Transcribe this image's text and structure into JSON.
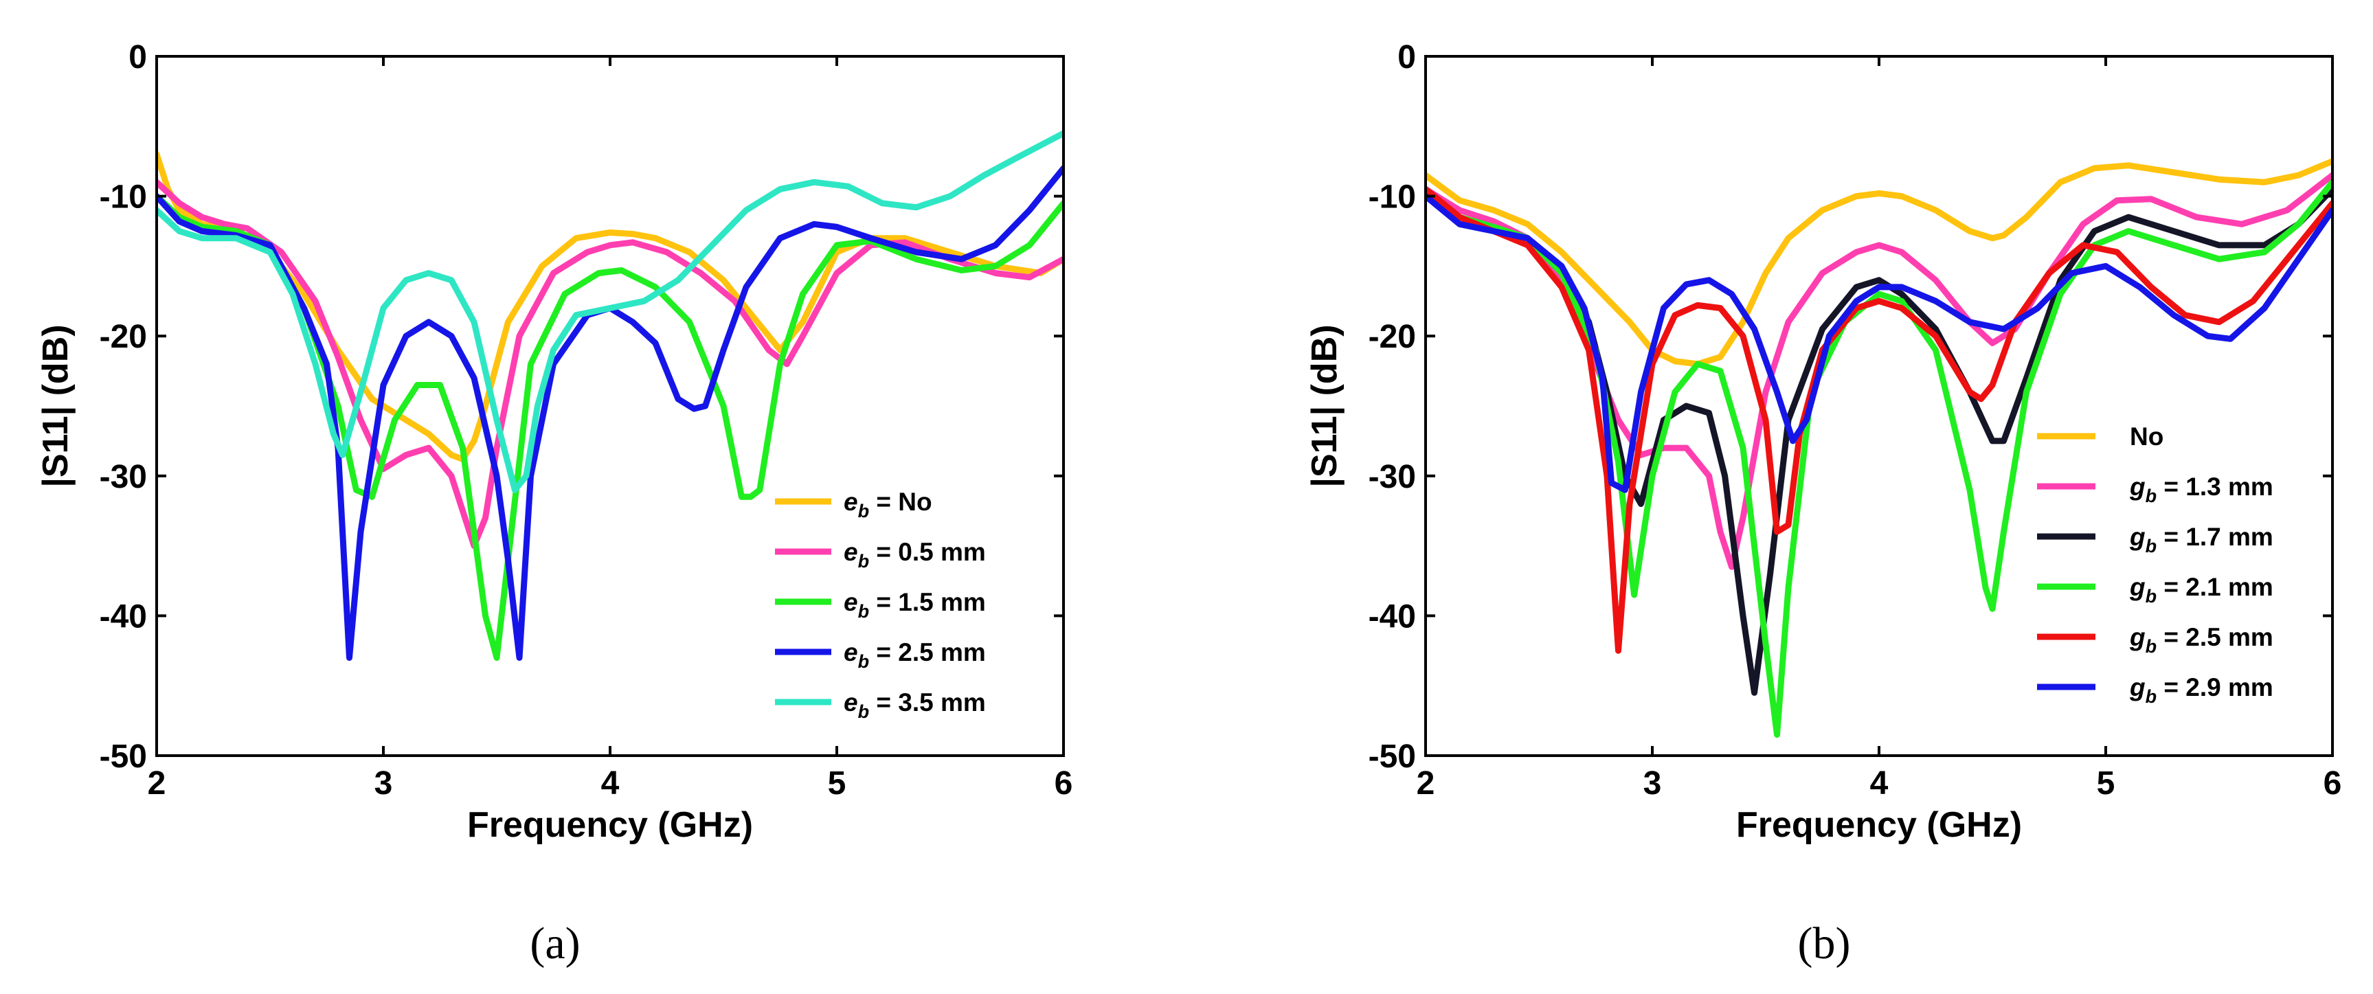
{
  "chart_data": [
    {
      "type": "line",
      "panel_label": "(a)",
      "xlabel": "Frequency (GHz)",
      "ylabel": "|S11| (dB)",
      "xlim": [
        2,
        6
      ],
      "ylim": [
        -50,
        0
      ],
      "xticks": [
        2,
        3,
        4,
        5,
        6
      ],
      "yticks": [
        0,
        -10,
        -20,
        -30,
        -40,
        -50
      ],
      "legend_position": "bottom-right",
      "series": [
        {
          "name": "No",
          "legend_prefix": "e",
          "legend_sub": "b",
          "legend_suffix": " = No",
          "color": "#ffc20e",
          "x": [
            2.0,
            2.05,
            2.1,
            2.2,
            2.35,
            2.5,
            2.65,
            2.8,
            2.95,
            3.1,
            3.2,
            3.3,
            3.35,
            3.4,
            3.45,
            3.55,
            3.7,
            3.85,
            4.0,
            4.1,
            4.2,
            4.35,
            4.5,
            4.65,
            4.75,
            4.85,
            5.0,
            5.15,
            5.3,
            5.5,
            5.7,
            5.9,
            6.0
          ],
          "y": [
            -7,
            -9.5,
            -11,
            -12,
            -12.5,
            -14,
            -17,
            -21,
            -24.5,
            -26,
            -27,
            -28.5,
            -28.8,
            -27.5,
            -25,
            -19,
            -15,
            -13,
            -12.6,
            -12.7,
            -13,
            -14,
            -16,
            -19,
            -21,
            -19,
            -14,
            -13,
            -13,
            -14,
            -15,
            -15.5,
            -14.5
          ]
        },
        {
          "name": "0.5 mm",
          "legend_prefix": "e",
          "legend_sub": "b",
          "legend_suffix": " = 0.5 mm",
          "color": "#ff3fb0",
          "x": [
            2.0,
            2.1,
            2.2,
            2.3,
            2.4,
            2.55,
            2.7,
            2.8,
            2.9,
            3.0,
            3.1,
            3.2,
            3.3,
            3.4,
            3.45,
            3.5,
            3.6,
            3.75,
            3.9,
            4.0,
            4.1,
            4.25,
            4.4,
            4.55,
            4.7,
            4.78,
            4.85,
            5.0,
            5.15,
            5.3,
            5.5,
            5.7,
            5.85,
            6.0
          ],
          "y": [
            -9,
            -10.5,
            -11.5,
            -12,
            -12.3,
            -14,
            -17.5,
            -21.5,
            -26,
            -29.5,
            -28.5,
            -28,
            -30,
            -35,
            -33,
            -28,
            -20,
            -15.5,
            -14,
            -13.5,
            -13.3,
            -14,
            -15.5,
            -17.5,
            -21,
            -22,
            -20,
            -15.5,
            -13.5,
            -13.3,
            -14.5,
            -15.5,
            -15.8,
            -14.5
          ]
        },
        {
          "name": "1.5 mm",
          "legend_prefix": "e",
          "legend_sub": "b",
          "legend_suffix": " = 1.5 mm",
          "color": "#20ee20",
          "x": [
            2.0,
            2.1,
            2.2,
            2.35,
            2.5,
            2.65,
            2.8,
            2.88,
            2.95,
            3.05,
            3.15,
            3.25,
            3.35,
            3.45,
            3.5,
            3.55,
            3.65,
            3.8,
            3.95,
            4.05,
            4.2,
            4.35,
            4.5,
            4.58,
            4.62,
            4.66,
            4.75,
            4.85,
            5.0,
            5.15,
            5.35,
            5.55,
            5.7,
            5.85,
            6.0
          ],
          "y": [
            -10,
            -11.5,
            -12.2,
            -12.5,
            -13.5,
            -18,
            -25,
            -31,
            -31.5,
            -26,
            -23.5,
            -23.5,
            -28,
            -40,
            -43,
            -36,
            -22,
            -17,
            -15.5,
            -15.3,
            -16.5,
            -19,
            -25,
            -31.5,
            -31.5,
            -31,
            -22,
            -17,
            -13.5,
            -13.2,
            -14.5,
            -15.3,
            -15,
            -13.5,
            -10.5
          ]
        },
        {
          "name": "2.5 mm",
          "legend_prefix": "e",
          "legend_sub": "b",
          "legend_suffix": " = 2.5 mm",
          "color": "#1515e8",
          "x": [
            2.0,
            2.1,
            2.2,
            2.35,
            2.5,
            2.65,
            2.75,
            2.8,
            2.85,
            2.9,
            3.0,
            3.1,
            3.2,
            3.3,
            3.4,
            3.5,
            3.55,
            3.6,
            3.65,
            3.75,
            3.9,
            4.0,
            4.1,
            4.2,
            4.3,
            4.37,
            4.42,
            4.5,
            4.6,
            4.75,
            4.9,
            5.0,
            5.15,
            5.35,
            5.55,
            5.7,
            5.85,
            6.0
          ],
          "y": [
            -10,
            -11.8,
            -12.5,
            -12.8,
            -13.5,
            -18,
            -22,
            -28,
            -43,
            -34,
            -23.5,
            -20,
            -19,
            -20,
            -23,
            -30,
            -36,
            -43,
            -30,
            -22,
            -18.5,
            -18,
            -19,
            -20.5,
            -24.5,
            -25.2,
            -25,
            -21,
            -16.5,
            -13,
            -12,
            -12.2,
            -13,
            -14,
            -14.5,
            -13.5,
            -11,
            -8
          ]
        },
        {
          "name": "3.5 mm",
          "legend_prefix": "e",
          "legend_sub": "b",
          "legend_suffix": " = 3.5 mm",
          "color": "#2ee6c4",
          "x": [
            2.0,
            2.1,
            2.2,
            2.35,
            2.5,
            2.6,
            2.7,
            2.78,
            2.82,
            2.9,
            3.0,
            3.1,
            3.2,
            3.3,
            3.4,
            3.5,
            3.58,
            3.63,
            3.68,
            3.75,
            3.85,
            4.0,
            4.15,
            4.3,
            4.45,
            4.6,
            4.75,
            4.9,
            5.05,
            5.2,
            5.35,
            5.5,
            5.65,
            5.8,
            6.0
          ],
          "y": [
            -11,
            -12.5,
            -13,
            -13,
            -14,
            -17,
            -22,
            -27,
            -28.5,
            -24,
            -18,
            -16,
            -15.5,
            -16,
            -19,
            -26,
            -31,
            -30,
            -25,
            -21,
            -18.5,
            -18,
            -17.5,
            -16,
            -13.5,
            -11,
            -9.5,
            -9,
            -9.3,
            -10.5,
            -10.8,
            -10,
            -8.5,
            -7.2,
            -5.5
          ]
        }
      ]
    },
    {
      "type": "line",
      "panel_label": "(b)",
      "xlabel": "Frequency (GHz)",
      "ylabel": "|S11| (dB)",
      "xlim": [
        2,
        6
      ],
      "ylim": [
        -50,
        0
      ],
      "xticks": [
        2,
        3,
        4,
        5,
        6
      ],
      "yticks": [
        0,
        -10,
        -20,
        -30,
        -40,
        -50
      ],
      "legend_position": "right",
      "series": [
        {
          "name": "No",
          "legend_prefix": "",
          "legend_sub": "",
          "legend_suffix": "No",
          "color": "#ffc20e",
          "x": [
            2.0,
            2.15,
            2.3,
            2.45,
            2.6,
            2.75,
            2.9,
            3.0,
            3.1,
            3.2,
            3.3,
            3.4,
            3.5,
            3.6,
            3.75,
            3.9,
            4.0,
            4.1,
            4.25,
            4.4,
            4.5,
            4.55,
            4.65,
            4.8,
            4.95,
            5.1,
            5.3,
            5.5,
            5.7,
            5.85,
            6.0
          ],
          "y": [
            -8.5,
            -10.3,
            -11,
            -12,
            -14,
            -16.5,
            -19,
            -21,
            -21.8,
            -22,
            -21.5,
            -19,
            -15.5,
            -13,
            -11,
            -10,
            -9.8,
            -10,
            -11,
            -12.5,
            -13,
            -12.8,
            -11.5,
            -9,
            -8,
            -7.8,
            -8.3,
            -8.8,
            -9,
            -8.5,
            -7.5
          ]
        },
        {
          "name": "1.3 mm",
          "legend_prefix": "g",
          "legend_sub": "b",
          "legend_suffix": " = 1.3 mm",
          "color": "#ff3fb0",
          "x": [
            2.0,
            2.15,
            2.3,
            2.45,
            2.6,
            2.75,
            2.85,
            2.95,
            3.05,
            3.15,
            3.25,
            3.3,
            3.35,
            3.4,
            3.5,
            3.6,
            3.75,
            3.9,
            4.0,
            4.1,
            4.25,
            4.4,
            4.5,
            4.6,
            4.75,
            4.9,
            5.05,
            5.2,
            5.4,
            5.6,
            5.8,
            6.0
          ],
          "y": [
            -9.5,
            -11,
            -11.8,
            -13,
            -16,
            -22,
            -26,
            -28.5,
            -28,
            -28,
            -30,
            -34,
            -36.5,
            -33,
            -24,
            -19,
            -15.5,
            -14,
            -13.5,
            -14,
            -16,
            -19,
            -20.5,
            -19.5,
            -15.5,
            -12,
            -10.3,
            -10.2,
            -11.5,
            -12,
            -11,
            -8.5
          ]
        },
        {
          "name": "1.7 mm",
          "legend_prefix": "g",
          "legend_sub": "b",
          "legend_suffix": " = 1.7 mm",
          "color": "#151528",
          "x": [
            2.0,
            2.15,
            2.3,
            2.45,
            2.6,
            2.72,
            2.8,
            2.88,
            2.95,
            3.05,
            3.15,
            3.25,
            3.32,
            3.4,
            3.45,
            3.52,
            3.6,
            3.75,
            3.9,
            4.0,
            4.1,
            4.25,
            4.4,
            4.5,
            4.55,
            4.65,
            4.8,
            4.95,
            5.1,
            5.3,
            5.5,
            5.7,
            5.85,
            6.0
          ],
          "y": [
            -9.5,
            -11.5,
            -12.3,
            -13,
            -15.5,
            -19,
            -24,
            -30,
            -32,
            -26,
            -25,
            -25.5,
            -30,
            -40,
            -45.5,
            -37,
            -26,
            -19.5,
            -16.5,
            -16,
            -17,
            -19.5,
            -24,
            -27.5,
            -27.5,
            -23,
            -16,
            -12.5,
            -11.5,
            -12.5,
            -13.5,
            -13.5,
            -12,
            -9.5
          ]
        },
        {
          "name": "2.1 mm",
          "legend_prefix": "g",
          "legend_sub": "b",
          "legend_suffix": " = 2.1 mm",
          "color": "#20ee20",
          "x": [
            2.0,
            2.15,
            2.3,
            2.45,
            2.6,
            2.75,
            2.85,
            2.92,
            3.0,
            3.1,
            3.2,
            3.3,
            3.4,
            3.5,
            3.55,
            3.6,
            3.7,
            3.85,
            4.0,
            4.1,
            4.25,
            4.4,
            4.47,
            4.5,
            4.55,
            4.65,
            4.8,
            4.95,
            5.1,
            5.3,
            5.5,
            5.7,
            5.85,
            6.0
          ],
          "y": [
            -9.8,
            -11.5,
            -12.2,
            -13,
            -15.5,
            -21,
            -29,
            -38.5,
            -30,
            -24,
            -22,
            -22.5,
            -28,
            -42,
            -48.5,
            -38,
            -24,
            -19,
            -17,
            -17.5,
            -21,
            -31,
            -38,
            -39.5,
            -34,
            -24,
            -17,
            -13.5,
            -12.5,
            -13.5,
            -14.5,
            -14,
            -12,
            -9
          ]
        },
        {
          "name": "2.5 mm",
          "legend_prefix": "g",
          "legend_sub": "b",
          "legend_suffix": " = 2.5 mm",
          "color": "#ee1111",
          "x": [
            2.0,
            2.15,
            2.3,
            2.45,
            2.6,
            2.72,
            2.8,
            2.85,
            2.9,
            3.0,
            3.1,
            3.2,
            3.3,
            3.4,
            3.5,
            3.55,
            3.6,
            3.65,
            3.75,
            3.9,
            4.0,
            4.1,
            4.25,
            4.4,
            4.45,
            4.5,
            4.6,
            4.75,
            4.9,
            5.05,
            5.2,
            5.35,
            5.5,
            5.65,
            5.8,
            6.0
          ],
          "y": [
            -9.5,
            -11.5,
            -12.5,
            -13.5,
            -16.5,
            -21,
            -30,
            -42.5,
            -32,
            -22,
            -18.5,
            -17.8,
            -18,
            -20,
            -26,
            -34,
            -33.5,
            -27,
            -21,
            -18,
            -17.5,
            -18,
            -20,
            -24,
            -24.5,
            -23.5,
            -19,
            -15.5,
            -13.5,
            -14,
            -16.5,
            -18.5,
            -19,
            -17.5,
            -14.5,
            -10.5
          ]
        },
        {
          "name": "2.9 mm",
          "legend_prefix": "g",
          "legend_sub": "b",
          "legend_suffix": " = 2.9 mm",
          "color": "#1515e8",
          "x": [
            2.0,
            2.15,
            2.3,
            2.45,
            2.6,
            2.7,
            2.78,
            2.82,
            2.88,
            2.95,
            3.05,
            3.15,
            3.25,
            3.35,
            3.45,
            3.55,
            3.62,
            3.68,
            3.78,
            3.9,
            4.0,
            4.1,
            4.25,
            4.4,
            4.55,
            4.7,
            4.85,
            5.0,
            5.15,
            5.3,
            5.45,
            5.55,
            5.7,
            5.85,
            6.0
          ],
          "y": [
            -10,
            -12,
            -12.5,
            -13,
            -15,
            -18,
            -23,
            -30.5,
            -31,
            -24,
            -18,
            -16.3,
            -16,
            -17,
            -19.5,
            -24,
            -27.5,
            -26,
            -20,
            -17.5,
            -16.5,
            -16.5,
            -17.5,
            -19,
            -19.5,
            -18,
            -15.5,
            -15,
            -16.5,
            -18.5,
            -20,
            -20.2,
            -18,
            -14.5,
            -11
          ]
        }
      ]
    }
  ]
}
